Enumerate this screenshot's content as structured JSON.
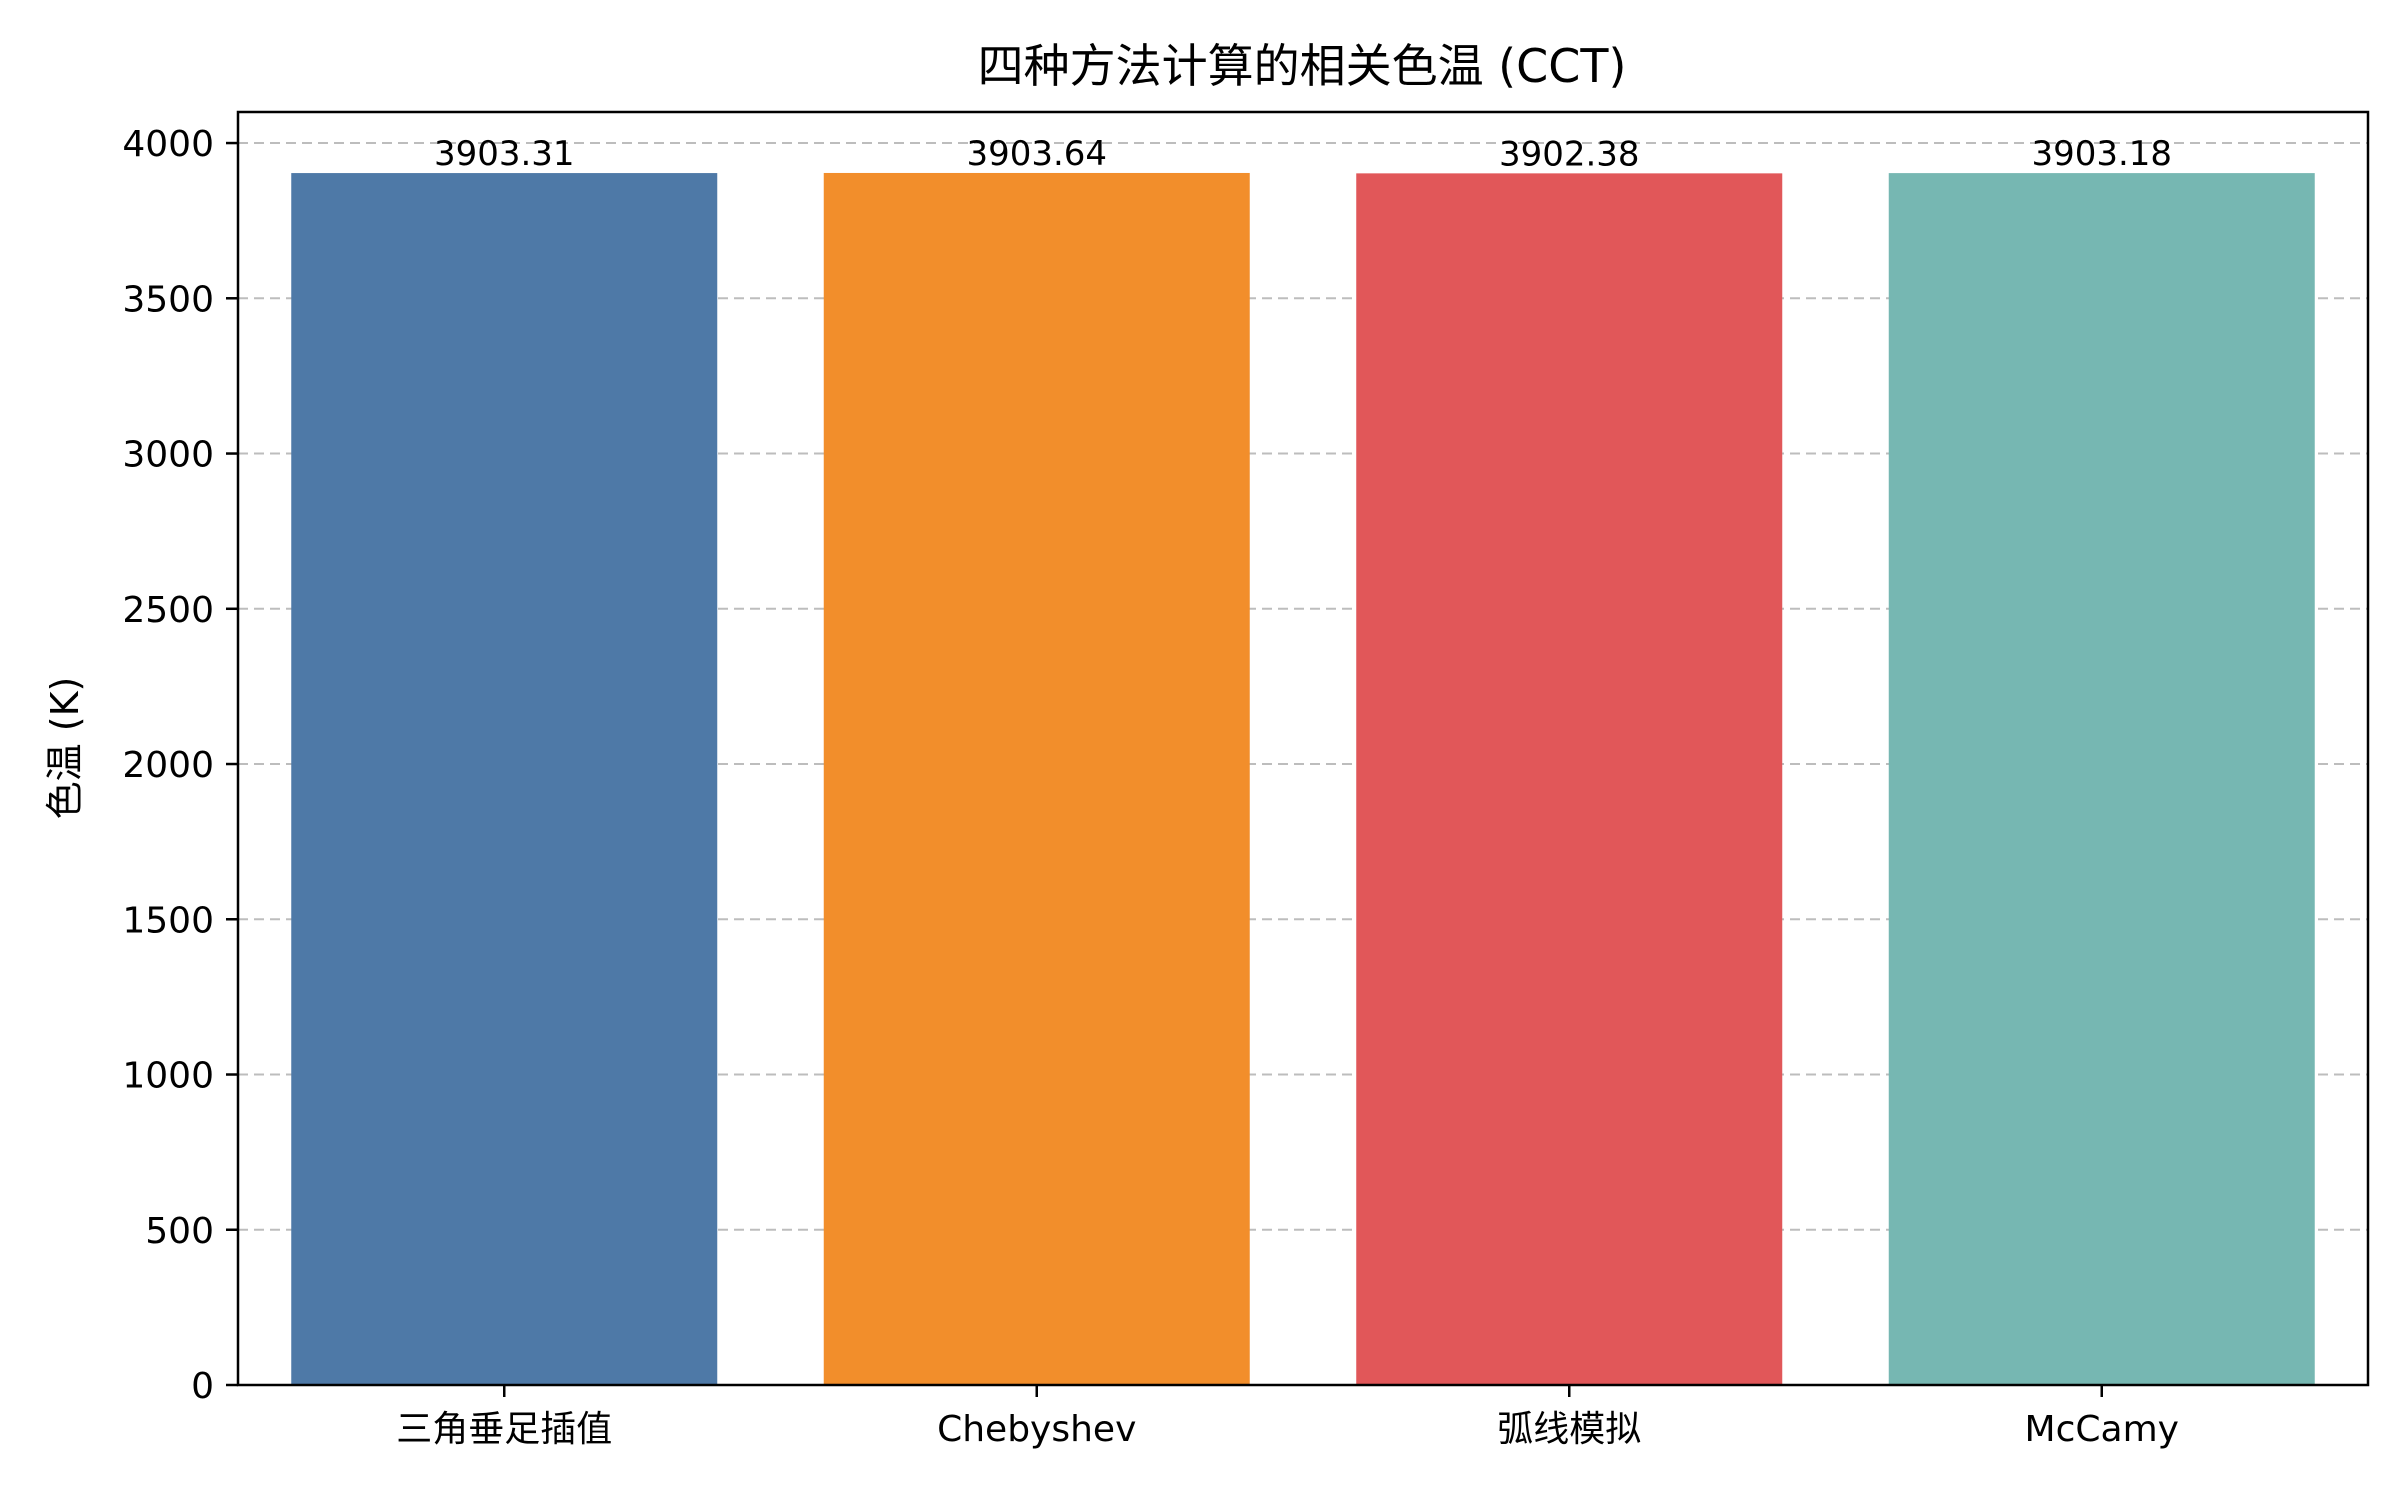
{
  "chart_data": {
    "type": "bar",
    "title": "四种方法计算的相关色温 (CCT)",
    "xlabel": "",
    "ylabel": "色温 (K)",
    "categories": [
      "三角垂足插值",
      "Chebyshev",
      "弧线模拟",
      "McCamy"
    ],
    "values": [
      3903.31,
      3903.64,
      3902.38,
      3903.18
    ],
    "value_labels": [
      "3903.31",
      "3903.64",
      "3902.38",
      "3903.18"
    ],
    "colors": [
      "#4e79a7",
      "#f28e2b",
      "#e15759",
      "#76b7b2"
    ],
    "ylim": [
      0,
      4100
    ],
    "yticks": [
      0,
      500,
      1000,
      1500,
      2000,
      2500,
      3000,
      3500,
      4000
    ],
    "grid": "y-dashed",
    "legend": "none"
  }
}
